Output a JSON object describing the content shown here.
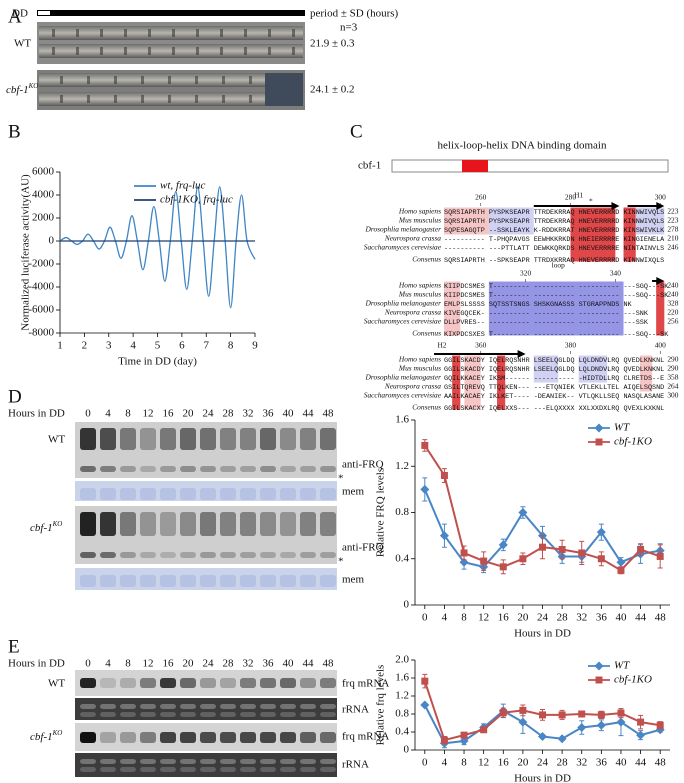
{
  "figure": {
    "panel_labels": [
      "A",
      "B",
      "C",
      "D",
      "E"
    ],
    "a": {
      "dd": "DD",
      "header": "period ± SD (hours)",
      "n": "n=3",
      "wt": "WT",
      "ko": "cbf-1",
      "ko_sup": "KO",
      "wt_period": "21.9 ± 0.3",
      "ko_period": "24.1 ± 0.2"
    },
    "c": {
      "protein": "cbf-1",
      "domain": "helix-loop-helix DNA binding domain",
      "h1": "H1",
      "loop": "loop",
      "h2": "H2",
      "star": "*",
      "blocks": [
        {
          "ruler": [
            "260",
            "280",
            "300"
          ],
          "rows": [
            {
              "species": "Homo sapiens",
              "seq": "SQRSIAPRTH PYSPKSEAPR TTRDEKRRAQ HNEVERRRRD KINNWIVQLS",
              "end": "223"
            },
            {
              "species": "Mus musculus",
              "seq": "SQRSIAPRTH PYSPKSEAPR TTRDEKRRAQ HNEVERRRRD KINNWIVQLS",
              "end": "223"
            },
            {
              "species": "Drosophlia melanogaster",
              "seq": "SQPESAGQTP --SSKLEAYK K-RDDKRRAT HNEVERRRRD KINSWIVKLK",
              "end": "278"
            },
            {
              "species": "Neurospora crassa",
              "seq": "---------- T-PHQPAVGS EEWHKKRKDN HNEIERRRRE KINGIENELA",
              "end": "210"
            },
            {
              "species": "Saccharomyces cerevisiae",
              "seq": "---------- ---PTTLATT DEWKKQRKDS HNEVERRRRE NINTAINVLS",
              "end": "246"
            },
            {
              "species": "Consenus",
              "seq": "SQRSIAPRTH --SPKSEAPR TTRDXKRRAQ HNEVERRRRD KINNWIXQLS",
              "end": ""
            }
          ]
        },
        {
          "ruler": [
            "320",
            "340"
          ],
          "rows": [
            {
              "species": "Homo sapiens",
              "seq": "KIIPDCSMES T--------- ---------- ---------- ---SGQ---SK",
              "end": "240"
            },
            {
              "species": "Mus musculus",
              "seq": "KIIPDCSMES T--------- ---------- ---------- ---SGQ---SK",
              "end": "240"
            },
            {
              "species": "Drosophlia melanogaster",
              "seq": "EMLPSLSSSS SQTSSTSNGS SHSKGNASSS STGRAPPNDS NK",
              "end": "328"
            },
            {
              "species": "Neurospora crassa",
              "seq": "KIVEGQCEK- ---------- ---------- ---------- ---SNK",
              "end": "220"
            },
            {
              "species": "Saccharomyces cerevisiae",
              "seq": "DLLPVRES-- ---------- ---------- ---------- ---SSK",
              "end": "256"
            },
            {
              "species": "Consenus",
              "seq": "KIXPDCSXES T--------- ---------- ---------- ---SGQ---SK",
              "end": ""
            }
          ]
        },
        {
          "ruler": [
            "360",
            "380",
            "400"
          ],
          "rows": [
            {
              "species": "Homo sapiens",
              "seq": "GGILSKACDY IQELRQSNHR LSEELQGLDQ LQLDNDVLRQ QVEDLKNKNL",
              "end": "290"
            },
            {
              "species": "Mus musculus",
              "seq": "GGILSKACDY IQELRQSNHR LSEELQGLDQ LQLDNDVLRQ QVEDLKNKNL",
              "end": "290"
            },
            {
              "species": "Drosophlia melanogaster",
              "seq": "GQILKKACEY IKSM------ ---------- -HIDTDLLRQ CLRETDS--E",
              "end": "358"
            },
            {
              "species": "Neurospora crassa",
              "seq": "GSILTQREVQ TTQLKEN--- ---ETQNIEK VTLEKLLTEL AIQELSQSND",
              "end": "264"
            },
            {
              "species": "Saccharomyces cerevisiae",
              "seq": "AAILKACAEY IKLKET---- -DEANIEK-- VTLQKLLSEQ NASQLASANE",
              "end": "300"
            },
            {
              "species": "Consenus",
              "seq": "GGILSKACXY IQELXXS--- ---ELQXXXX XXLXXDXLRQ QVEXLKXKNL",
              "end": ""
            }
          ]
        }
      ]
    },
    "d": {
      "hours_title": "Hours in DD",
      "hours": [
        0,
        4,
        8,
        12,
        16,
        20,
        24,
        28,
        32,
        36,
        40,
        44,
        48
      ],
      "wt": "WT",
      "ko": "cbf-1",
      "ko_sup": "KO",
      "probe": "anti-FRQ",
      "loading": "mem",
      "star": "*"
    },
    "e": {
      "hours_title": "Hours in DD",
      "hours": [
        0,
        4,
        8,
        12,
        16,
        20,
        24,
        28,
        32,
        36,
        40,
        44,
        48
      ],
      "wt": "WT",
      "ko": "cbf-1",
      "ko_sup": "KO",
      "probe": "frq mRNA",
      "loading": "rRNA"
    }
  },
  "chart_data": [
    {
      "type": "line",
      "smooth": true,
      "ylabel": "Normalized luciferase activity(AU)",
      "xlabel": "Time in DD (day)",
      "x": [
        1.0,
        1.25,
        1.475,
        1.7,
        1.925,
        2.15,
        2.375,
        2.6,
        2.825,
        3.05,
        3.275,
        3.5,
        3.725,
        3.95,
        4.175,
        4.4,
        4.625,
        4.85,
        5.075,
        5.3,
        5.525,
        5.75,
        5.975,
        6.2,
        6.425,
        6.65,
        6.875,
        7.1,
        7.325,
        7.55,
        7.775,
        8.0,
        8.225,
        8.45,
        8.675,
        9.0
      ],
      "xlim": [
        1,
        9
      ],
      "xticks": [
        1,
        2,
        3,
        4,
        5,
        6,
        7,
        8,
        9
      ],
      "ylim": [
        -8000,
        6000
      ],
      "yticks": [
        -8000,
        -6000,
        -4000,
        -2000,
        0,
        2000,
        4000,
        6000
      ],
      "legend": "upper center",
      "series": [
        {
          "name": "wt, frq-luc",
          "color": "#3d85c6",
          "values": [
            0,
            300,
            0,
            -300,
            0,
            600,
            0,
            -700,
            0,
            1200,
            0,
            -1500,
            0,
            2200,
            0,
            -2500,
            0,
            3000,
            0,
            -3500,
            0,
            4300,
            0,
            -4200,
            0,
            4700,
            0,
            -4800,
            0,
            4700,
            0,
            -5800,
            0,
            4000,
            0,
            -1600
          ]
        },
        {
          "name": "cbf-1KO, frq-luc",
          "color": "#1f3f73",
          "values": [
            0,
            0,
            0,
            0,
            0,
            0,
            0,
            0,
            0,
            0,
            0,
            0,
            0,
            0,
            0,
            0,
            0,
            0,
            0,
            0,
            0,
            0,
            0,
            0,
            0,
            0,
            0,
            0,
            0,
            0,
            0,
            0,
            0,
            0,
            0,
            0
          ]
        }
      ]
    },
    {
      "type": "line",
      "smooth": false,
      "ylabel": "Relative FRQ levels",
      "xlabel": "Hours in DD",
      "x": [
        0,
        4,
        8,
        12,
        16,
        20,
        24,
        28,
        32,
        36,
        40,
        44,
        48
      ],
      "xlim": [
        -2,
        50
      ],
      "xticks": [
        0,
        4,
        8,
        12,
        16,
        20,
        24,
        28,
        32,
        36,
        40,
        44,
        48
      ],
      "ylim": [
        0,
        1.6
      ],
      "yticks": [
        0,
        0.4,
        0.8,
        1.2,
        1.6
      ],
      "legend": "upper right",
      "series": [
        {
          "name": "WT",
          "color": "#4a86c5",
          "marker": "diamond",
          "values": [
            1.0,
            0.6,
            0.37,
            0.33,
            0.52,
            0.8,
            0.6,
            0.42,
            0.42,
            0.63,
            0.37,
            0.44,
            0.47
          ],
          "errors": [
            0.1,
            0.1,
            0.06,
            0.05,
            0.05,
            0.05,
            0.08,
            0.06,
            0.05,
            0.07,
            0.04,
            0.08,
            0.06
          ]
        },
        {
          "name": "cbf-1KO",
          "color": "#c0504d",
          "marker": "square",
          "values": [
            1.38,
            1.12,
            0.45,
            0.38,
            0.33,
            0.4,
            0.5,
            0.48,
            0.45,
            0.4,
            0.3,
            0.48,
            0.42
          ],
          "errors": [
            0.05,
            0.06,
            0.06,
            0.08,
            0.06,
            0.05,
            0.1,
            0.08,
            0.1,
            0.06,
            0.03,
            0.05,
            0.1
          ]
        }
      ]
    },
    {
      "type": "line",
      "smooth": false,
      "ylabel": "Relative frq levels",
      "xlabel": "Hours in DD",
      "x": [
        0,
        4,
        8,
        12,
        16,
        20,
        24,
        28,
        32,
        36,
        40,
        44,
        48
      ],
      "xlim": [
        -2,
        50
      ],
      "xticks": [
        0,
        4,
        8,
        12,
        16,
        20,
        24,
        28,
        32,
        36,
        40,
        44,
        48
      ],
      "ylim": [
        0,
        2.0
      ],
      "yticks": [
        0,
        0.4,
        0.8,
        1.2,
        1.6,
        {
          "value": 2.0,
          "label": "2.0"
        }
      ],
      "legend": "upper right",
      "series": [
        {
          "name": "WT",
          "color": "#4a86c5",
          "marker": "diamond",
          "values": [
            1.0,
            0.15,
            0.2,
            0.5,
            0.87,
            0.62,
            0.3,
            0.25,
            0.5,
            0.55,
            0.62,
            0.33,
            0.45
          ],
          "errors": [
            0.03,
            0.1,
            0.08,
            0.08,
            0.15,
            0.25,
            0.03,
            0.02,
            0.15,
            0.12,
            0.3,
            0.1,
            0.05
          ]
        },
        {
          "name": "cbf-1KO",
          "color": "#c0504d",
          "marker": "square",
          "values": [
            1.53,
            0.22,
            0.33,
            0.45,
            0.83,
            0.88,
            0.78,
            0.78,
            0.8,
            0.78,
            0.82,
            0.62,
            0.55
          ],
          "errors": [
            0.15,
            0.08,
            0.06,
            0.05,
            0.1,
            0.12,
            0.12,
            0.1,
            0.05,
            0.08,
            0.1,
            0.15,
            0.08
          ]
        }
      ]
    }
  ]
}
